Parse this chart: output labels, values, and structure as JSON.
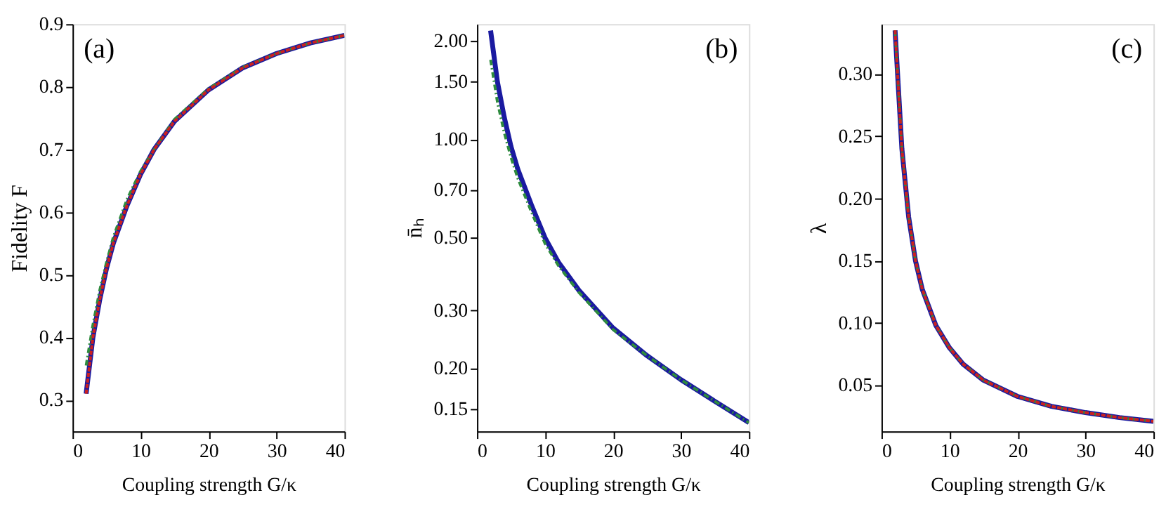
{
  "chart_data": [
    {
      "type": "line",
      "xlabel": "Coupling strength  G/κ",
      "ylabel": "Fidelity  F",
      "annotations": [
        "(a)"
      ],
      "xlim": [
        0,
        40
      ],
      "xticks": [
        0,
        10,
        20,
        30,
        40
      ],
      "ylim": [
        0.25,
        0.9
      ],
      "yticks": [
        0.3,
        0.4,
        0.5,
        0.6,
        0.7,
        0.8,
        0.9
      ],
      "grid": false,
      "x": [
        2,
        3,
        4,
        5,
        6,
        8,
        10,
        12,
        15,
        20,
        25,
        30,
        35,
        40
      ],
      "series": [
        {
          "color": "#1a1aa0",
          "line_style": "solid",
          "values": [
            0.31,
            0.4,
            0.46,
            0.51,
            0.55,
            0.61,
            0.66,
            0.7,
            0.745,
            0.795,
            0.83,
            0.853,
            0.87,
            0.882
          ]
        },
        {
          "color": "#cc2020",
          "line_style": "dashed",
          "values": [
            0.31,
            0.4,
            0.46,
            0.51,
            0.55,
            0.61,
            0.66,
            0.7,
            0.745,
            0.795,
            0.83,
            0.853,
            0.87,
            0.882
          ]
        },
        {
          "color": "#2e8b3e",
          "line_style": "dotted",
          "values": [
            0.355,
            0.42,
            0.475,
            0.52,
            0.56,
            0.62,
            0.665,
            0.7,
            0.748,
            0.797,
            0.831,
            0.853,
            0.87,
            0.882
          ]
        }
      ]
    },
    {
      "type": "line",
      "xlabel": "Coupling strength  G/κ",
      "ylabel": "n̄ₕ",
      "annotations": [
        "(b)"
      ],
      "log": true,
      "xlim": [
        0,
        40
      ],
      "xticks": [
        0,
        10,
        20,
        30,
        40
      ],
      "ylim": [
        0.128,
        2.25
      ],
      "yticks": [
        {
          "value": 0.15,
          "label": "0.15"
        },
        {
          "value": 0.2,
          "label": "0.20"
        },
        {
          "value": 0.3,
          "label": "0.30"
        },
        {
          "value": 0.5,
          "label": "0.50"
        },
        {
          "value": 0.7,
          "label": "0.70"
        },
        {
          "value": 1,
          "label": "1.00"
        },
        {
          "value": 1.5,
          "label": "1.50"
        },
        {
          "value": 2,
          "label": "2.00"
        }
      ],
      "grid": false,
      "x": [
        2,
        3,
        4,
        5,
        6,
        8,
        10,
        12,
        15,
        20,
        25,
        30,
        35,
        40
      ],
      "series": [
        {
          "color": "#1a1aa0",
          "line_style": "solid",
          "values": [
            2.15,
            1.5,
            1.17,
            0.95,
            0.81,
            0.63,
            0.5,
            0.42,
            0.345,
            0.265,
            0.218,
            0.184,
            0.158,
            0.136
          ]
        },
        {
          "color": "#2e8b3e",
          "line_style": "dotted",
          "values": [
            1.75,
            1.3,
            1.05,
            0.88,
            0.76,
            0.6,
            0.48,
            0.41,
            0.34,
            0.262,
            0.218,
            0.184,
            0.158,
            0.136
          ]
        }
      ]
    },
    {
      "type": "line",
      "xlabel": "Coupling strength  G/κ",
      "ylabel": "λ",
      "annotations": [
        "(c)"
      ],
      "xlim": [
        0,
        40
      ],
      "xticks": [
        0,
        10,
        20,
        30,
        40
      ],
      "ylim": [
        0.013,
        0.34
      ],
      "yticks": [
        0.05,
        {
          "value": 0.1,
          "label": "0.10"
        },
        0.15,
        {
          "value": 0.2,
          "label": "0.20"
        },
        0.25,
        {
          "value": 0.3,
          "label": "0.30"
        }
      ],
      "grid": false,
      "x": [
        2,
        3,
        4,
        5,
        6,
        8,
        10,
        12,
        15,
        20,
        25,
        30,
        35,
        40
      ],
      "series": [
        {
          "color": "#1a1aa0",
          "line_style": "solid",
          "values": [
            0.335,
            0.24,
            0.185,
            0.15,
            0.127,
            0.098,
            0.08,
            0.067,
            0.054,
            0.041,
            0.033,
            0.028,
            0.024,
            0.021
          ]
        },
        {
          "color": "#cc2020",
          "line_style": "dashed",
          "values": [
            0.335,
            0.24,
            0.185,
            0.15,
            0.127,
            0.098,
            0.08,
            0.067,
            0.054,
            0.041,
            0.033,
            0.028,
            0.024,
            0.021
          ]
        },
        {
          "color": "#2e8b3e",
          "line_style": "dotted",
          "values": [
            0.335,
            0.24,
            0.185,
            0.15,
            0.127,
            0.098,
            0.08,
            0.067,
            0.054,
            0.041,
            0.033,
            0.028,
            0.024,
            0.021
          ]
        }
      ]
    }
  ]
}
